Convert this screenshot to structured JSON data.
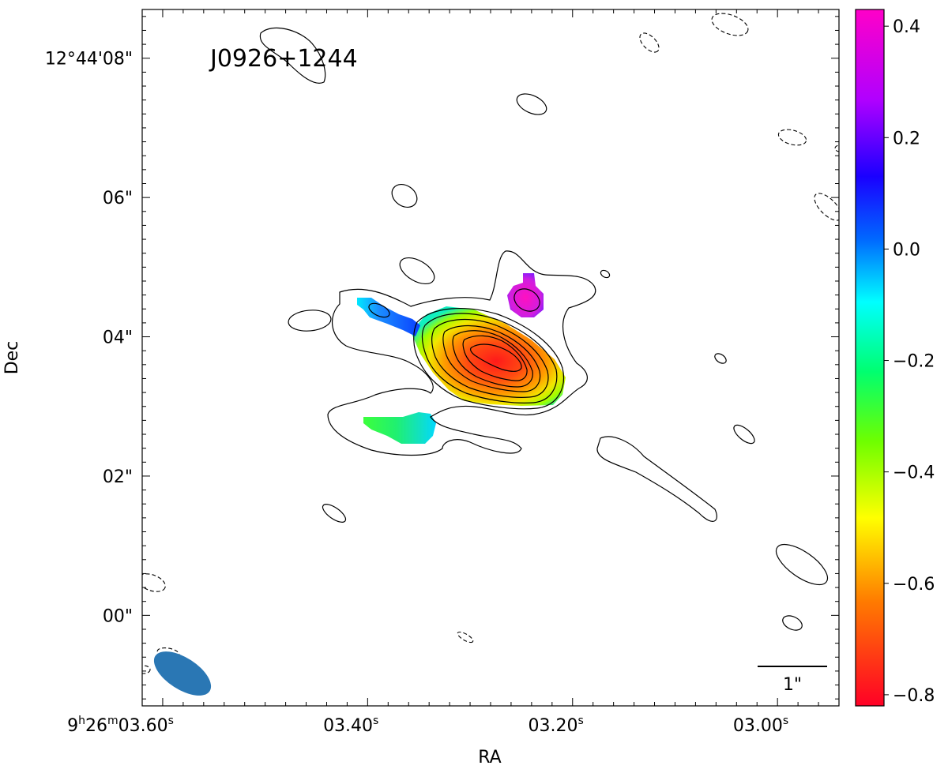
{
  "chart_data": {
    "type": "heatmap",
    "title": "J0926+1244",
    "xlabel": "RA",
    "ylabel": "Dec",
    "x_ticks": [
      {
        "h": "9",
        "m": "26",
        "s": "03.60"
      },
      {
        "h": "",
        "m": "",
        "s": "03.40"
      },
      {
        "h": "",
        "m": "",
        "s": "03.20"
      },
      {
        "h": "",
        "m": "",
        "s": "03.00"
      }
    ],
    "y_ticks": [
      "12°44'08\"",
      "06\"",
      "04\"",
      "02\"",
      "00\""
    ],
    "x_tick_seconds": [
      3.6,
      3.4,
      3.2,
      3.0
    ],
    "y_tick_arcsec": [
      8,
      6,
      4,
      2,
      0
    ],
    "xlim_seconds": [
      3.62,
      2.94
    ],
    "ylim_arcsec": [
      -1.3,
      8.7
    ],
    "colorbar": {
      "range": [
        -0.82,
        0.43
      ],
      "ticks": [
        0.4,
        0.2,
        0.0,
        -0.2,
        -0.4,
        -0.6,
        -0.8
      ],
      "tick_labels": [
        "0.4",
        "0.2",
        "0.0",
        "−0.2",
        "−0.4",
        "−0.6",
        "−0.8"
      ],
      "colormap": "gist_rainbow"
    },
    "scale_bar_label": "1\"",
    "beam_color": "#2a77b4",
    "contour_color": "#000000",
    "negative_contours": "dashed",
    "grid": false
  }
}
